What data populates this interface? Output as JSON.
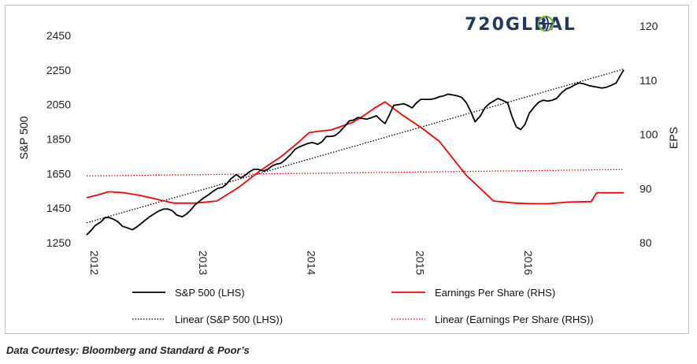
{
  "logo": {
    "text_a": "720GL",
    "text_b": "BAL",
    "color": "#1f3864",
    "accent": "#7ab648"
  },
  "source_note": "Data Courtesy: Bloomberg and Standard & Poor’s",
  "chart_data": {
    "type": "line",
    "title": "",
    "xlabel": "",
    "ylabel_left": "S&P 500",
    "ylabel_right": "EPS",
    "xlim": [
      2012.0,
      2016.95
    ],
    "ylim_left": [
      1250,
      2450
    ],
    "ylim_right": [
      80,
      120
    ],
    "yticks_left": [
      1250,
      1450,
      1650,
      1850,
      2050,
      2250,
      2450
    ],
    "yticks_right": [
      80,
      90,
      100,
      110,
      120
    ],
    "xticks": [
      {
        "x": 2012,
        "label": "2012"
      },
      {
        "x": 2013,
        "label": "2013"
      },
      {
        "x": 2014,
        "label": "2014"
      },
      {
        "x": 2015,
        "label": "2015"
      },
      {
        "x": 2016,
        "label": "2016"
      }
    ],
    "grid": false,
    "legend_placement": "bottom",
    "series": [
      {
        "name": "S&P 500 (LHS)",
        "axis": "left",
        "color": "#000000",
        "style": "solid",
        "x": [
          2012.0,
          2012.04,
          2012.08,
          2012.13,
          2012.17,
          2012.21,
          2012.25,
          2012.29,
          2012.33,
          2012.38,
          2012.42,
          2012.46,
          2012.5,
          2012.54,
          2012.58,
          2012.63,
          2012.67,
          2012.71,
          2012.75,
          2012.79,
          2012.83,
          2012.88,
          2012.92,
          2012.96,
          2013.0,
          2013.04,
          2013.08,
          2013.13,
          2013.17,
          2013.21,
          2013.25,
          2013.29,
          2013.33,
          2013.38,
          2013.42,
          2013.46,
          2013.5,
          2013.54,
          2013.58,
          2013.63,
          2013.67,
          2013.71,
          2013.75,
          2013.79,
          2013.83,
          2013.88,
          2013.92,
          2013.96,
          2014.0,
          2014.04,
          2014.08,
          2014.13,
          2014.17,
          2014.21,
          2014.25,
          2014.29,
          2014.33,
          2014.38,
          2014.42,
          2014.46,
          2014.5,
          2014.54,
          2014.58,
          2014.63,
          2014.67,
          2014.71,
          2014.75,
          2014.79,
          2014.83,
          2014.88,
          2014.92,
          2014.96,
          2015.0,
          2015.04,
          2015.08,
          2015.13,
          2015.17,
          2015.21,
          2015.25,
          2015.29,
          2015.33,
          2015.38,
          2015.42,
          2015.46,
          2015.5,
          2015.54,
          2015.58,
          2015.63,
          2015.67,
          2015.71,
          2015.75,
          2015.79,
          2015.83,
          2015.88,
          2015.92,
          2015.96,
          2016.0,
          2016.04,
          2016.08,
          2016.13,
          2016.17,
          2016.21,
          2016.25,
          2016.29,
          2016.33,
          2016.38,
          2016.42,
          2016.46,
          2016.5,
          2016.54,
          2016.58,
          2016.63,
          2016.67,
          2016.71,
          2016.75,
          2016.79,
          2016.83,
          2016.88,
          2016.92,
          2016.95
        ],
        "values": [
          1295,
          1320,
          1350,
          1370,
          1395,
          1395,
          1385,
          1370,
          1345,
          1335,
          1325,
          1340,
          1360,
          1380,
          1400,
          1420,
          1435,
          1445,
          1445,
          1435,
          1410,
          1400,
          1415,
          1440,
          1470,
          1490,
          1510,
          1530,
          1550,
          1565,
          1570,
          1590,
          1620,
          1645,
          1625,
          1640,
          1660,
          1675,
          1675,
          1665,
          1675,
          1695,
          1705,
          1710,
          1730,
          1760,
          1790,
          1805,
          1815,
          1825,
          1830,
          1820,
          1835,
          1865,
          1865,
          1870,
          1890,
          1925,
          1955,
          1960,
          1975,
          1970,
          1965,
          1975,
          1985,
          1960,
          1940,
          1990,
          2045,
          2050,
          2055,
          2045,
          2030,
          2060,
          2080,
          2080,
          2080,
          2085,
          2095,
          2100,
          2110,
          2105,
          2100,
          2090,
          2060,
          2010,
          1950,
          1985,
          2030,
          2055,
          2070,
          2085,
          2075,
          2060,
          1980,
          1920,
          1905,
          1935,
          2000,
          2040,
          2065,
          2075,
          2070,
          2075,
          2085,
          2120,
          2140,
          2150,
          2165,
          2175,
          2170,
          2160,
          2155,
          2150,
          2145,
          2150,
          2160,
          2175,
          2220,
          2250
        ]
      },
      {
        "name": "Earnings Per Share (RHS)",
        "axis": "right",
        "color": "#ff0000",
        "style": "solid",
        "x": [
          2012.0,
          2012.1,
          2012.2,
          2012.35,
          2012.5,
          2012.65,
          2012.8,
          2013.0,
          2013.2,
          2013.4,
          2013.6,
          2013.8,
          2013.95,
          2014.05,
          2014.15,
          2014.25,
          2014.45,
          2014.55,
          2014.65,
          2014.75,
          2014.9,
          2015.1,
          2015.25,
          2015.5,
          2015.75,
          2015.95,
          2016.1,
          2016.25,
          2016.45,
          2016.65,
          2016.7,
          2016.95
        ],
        "values": [
          88.3,
          88.8,
          89.4,
          89.2,
          88.7,
          88.0,
          87.3,
          87.3,
          87.7,
          90.2,
          93.3,
          96.0,
          98.5,
          100.3,
          100.6,
          100.8,
          102.2,
          103.4,
          104.8,
          106.0,
          103.7,
          101.0,
          98.7,
          92.4,
          87.7,
          87.3,
          87.2,
          87.2,
          87.5,
          87.6,
          89.2,
          89.2
        ]
      },
      {
        "name": "Linear (S&P 500 (LHS))",
        "axis": "left",
        "color": "#000000",
        "style": "dotted",
        "x": [
          2012.0,
          2016.95
        ],
        "values": [
          1365,
          2255
        ]
      },
      {
        "name": "Linear (Earnings Per Share (RHS))",
        "axis": "right",
        "color": "#ff0000",
        "style": "dotted",
        "x": [
          2012.0,
          2016.95
        ],
        "values": [
          92.3,
          93.5
        ]
      }
    ]
  }
}
